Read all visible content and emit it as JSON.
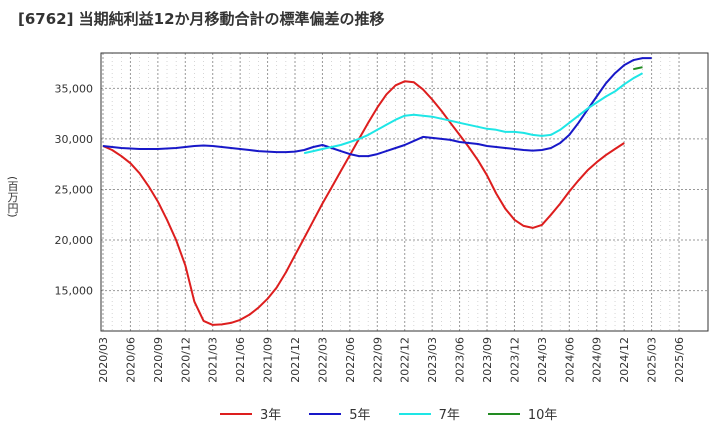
{
  "chart_data": {
    "type": "line",
    "title": "[6762]  当期純利益12か月移動合計の標準偏差の推移",
    "ylabel": "(百万円)",
    "xlabel": "",
    "ylim": [
      11000,
      38500
    ],
    "yticks": [
      15000,
      20000,
      25000,
      30000,
      35000
    ],
    "ytick_labels": [
      "15,000",
      "20,000",
      "25,000",
      "30,000",
      "35,000"
    ],
    "xticks": [
      "2020/03",
      "2020/06",
      "2020/09",
      "2020/12",
      "2021/03",
      "2021/06",
      "2021/09",
      "2021/12",
      "2022/03",
      "2022/06",
      "2022/09",
      "2022/12",
      "2023/03",
      "2023/06",
      "2023/09",
      "2023/12",
      "2024/03",
      "2024/06",
      "2024/09",
      "2024/12",
      "2025/03",
      "2025/06"
    ],
    "grid": true,
    "legend_position": "bottom",
    "series": [
      {
        "name": "3年",
        "color": "#dd1e1e",
        "start": "2020/03",
        "values": [
          29300,
          28900,
          28300,
          27600,
          26600,
          25300,
          23800,
          22000,
          20000,
          17500,
          13900,
          12000,
          11600,
          11650,
          11800,
          12100,
          12600,
          13300,
          14200,
          15300,
          16800,
          18500,
          20200,
          21900,
          23600,
          25200,
          26800,
          28400,
          30000,
          31600,
          33100,
          34400,
          35300,
          35700,
          35600,
          34900,
          33900,
          32800,
          31600,
          30400,
          29200,
          27900,
          26400,
          24600,
          23100,
          22000,
          21400,
          21200,
          21500,
          22500,
          23600,
          24800,
          25900,
          26900,
          27700,
          28400,
          29000,
          29600
        ]
      },
      {
        "name": "5年",
        "color": "#1818c8",
        "start": "2020/03",
        "values": [
          29300,
          29200,
          29100,
          29050,
          29000,
          29000,
          29000,
          29050,
          29100,
          29200,
          29300,
          29350,
          29300,
          29200,
          29100,
          29000,
          28900,
          28800,
          28750,
          28700,
          28700,
          28750,
          28900,
          29200,
          29400,
          29100,
          28800,
          28500,
          28300,
          28300,
          28500,
          28800,
          29100,
          29400,
          29800,
          30200,
          30100,
          30000,
          29900,
          29700,
          29600,
          29500,
          29300,
          29200,
          29100,
          29000,
          28900,
          28850,
          28900,
          29100,
          29600,
          30400,
          31600,
          32900,
          34200,
          35500,
          36500,
          37300,
          37800,
          38000,
          38000
        ]
      },
      {
        "name": "7年",
        "color": "#1ee6e6",
        "start": "2022/01",
        "values": [
          28600,
          28800,
          29000,
          29200,
          29400,
          29700,
          30000,
          30400,
          30900,
          31400,
          31900,
          32300,
          32400,
          32300,
          32200,
          32000,
          31800,
          31600,
          31400,
          31200,
          31000,
          30900,
          30700,
          30700,
          30600,
          30400,
          30300,
          30400,
          30900,
          31600,
          32300,
          33000,
          33600,
          34200,
          34700,
          35400,
          36000,
          36500
        ]
      },
      {
        "name": "10年",
        "color": "#228b22",
        "start": "2025/01",
        "values": [
          36900,
          37100
        ]
      }
    ]
  }
}
